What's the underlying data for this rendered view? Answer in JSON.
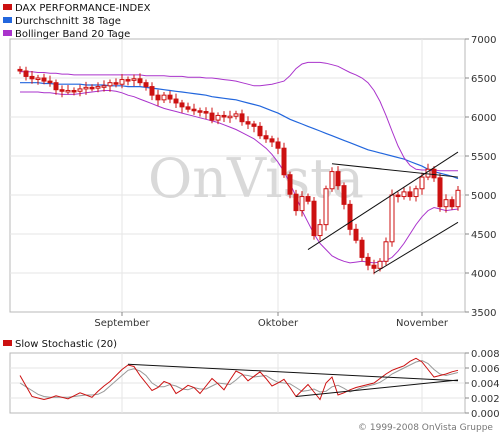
{
  "chart_data": [
    {
      "type": "candlestick",
      "title": "",
      "legend": [
        {
          "name": "DAX PERFORMANCE-INDEX",
          "color": "#cc1111"
        },
        {
          "name": "Durchschnitt 38 Tage",
          "color": "#2266dd"
        },
        {
          "name": "Bollinger Band 20 Tage",
          "color": "#aa33cc"
        }
      ],
      "legend_position": "top-left",
      "x_tick_labels": [
        "September",
        "Oktober",
        "November"
      ],
      "x_ticks_index": [
        17,
        43,
        67
      ],
      "y_tick_labels": [
        "7000",
        "6500",
        "6000",
        "5500",
        "5000",
        "4500",
        "4000",
        "3500"
      ],
      "ylim": [
        3500,
        7000
      ],
      "grid": true,
      "watermark": "OnVista",
      "series": [
        {
          "name": "DAX PERFORMANCE-INDEX",
          "color": "#cc1111",
          "close": [
            6590,
            6520,
            6490,
            6500,
            6460,
            6440,
            6350,
            6330,
            6340,
            6330,
            6360,
            6380,
            6370,
            6390,
            6400,
            6440,
            6420,
            6480,
            6470,
            6490,
            6440,
            6390,
            6280,
            6220,
            6280,
            6230,
            6180,
            6130,
            6100,
            6080,
            6070,
            6050,
            5960,
            6020,
            6000,
            6010,
            6040,
            5940,
            5910,
            5880,
            5760,
            5720,
            5680,
            5600,
            5260,
            5010,
            4800,
            4980,
            4920,
            4480,
            4620,
            5080,
            5300,
            5120,
            4880,
            4560,
            4420,
            4200,
            4100,
            4060,
            4150,
            4400,
            5000,
            4980,
            5040,
            4980,
            5080,
            5230,
            5330,
            5220,
            4850,
            4940,
            4850,
            5060
          ]
        },
        {
          "name": "Durchschnitt 38 Tage",
          "color": "#2266dd",
          "values": [
            6440,
            6440,
            6440,
            6440,
            6430,
            6430,
            6420,
            6420,
            6420,
            6420,
            6420,
            6410,
            6410,
            6410,
            6410,
            6400,
            6400,
            6400,
            6390,
            6390,
            6390,
            6380,
            6370,
            6360,
            6350,
            6340,
            6330,
            6320,
            6310,
            6300,
            6290,
            6280,
            6260,
            6250,
            6240,
            6230,
            6220,
            6200,
            6180,
            6160,
            6140,
            6110,
            6080,
            6050,
            6010,
            5970,
            5940,
            5910,
            5880,
            5850,
            5820,
            5790,
            5760,
            5730,
            5700,
            5670,
            5640,
            5610,
            5580,
            5560,
            5540,
            5520,
            5500,
            5480,
            5460,
            5430,
            5400,
            5370,
            5330,
            5300,
            5280,
            5260,
            5240,
            5210
          ]
        },
        {
          "name": "Bollinger Band 20 Tage (oben)",
          "color": "#aa33cc",
          "values": [
            6580,
            6580,
            6580,
            6570,
            6570,
            6560,
            6560,
            6550,
            6550,
            6540,
            6540,
            6540,
            6540,
            6540,
            6540,
            6540,
            6540,
            6540,
            6540,
            6540,
            6540,
            6530,
            6530,
            6530,
            6530,
            6520,
            6520,
            6520,
            6510,
            6510,
            6510,
            6500,
            6500,
            6490,
            6480,
            6470,
            6460,
            6440,
            6420,
            6400,
            6400,
            6410,
            6420,
            6440,
            6460,
            6530,
            6620,
            6680,
            6700,
            6700,
            6700,
            6690,
            6670,
            6650,
            6610,
            6570,
            6540,
            6500,
            6440,
            6340,
            6200,
            6020,
            5820,
            5630,
            5480,
            5380,
            5330,
            5320,
            5320,
            5320,
            5310,
            5310,
            5310,
            5310
          ]
        },
        {
          "name": "Bollinger Band 20 Tage (unten)",
          "color": "#aa33cc",
          "values": [
            6320,
            6320,
            6320,
            6320,
            6310,
            6310,
            6300,
            6290,
            6290,
            6290,
            6300,
            6310,
            6320,
            6330,
            6340,
            6340,
            6330,
            6310,
            6280,
            6260,
            6230,
            6200,
            6170,
            6140,
            6110,
            6090,
            6070,
            6050,
            6030,
            6010,
            5990,
            5970,
            5950,
            5930,
            5900,
            5870,
            5840,
            5800,
            5760,
            5720,
            5660,
            5600,
            5520,
            5420,
            5300,
            5150,
            4980,
            4800,
            4650,
            4500,
            4380,
            4300,
            4220,
            4180,
            4150,
            4130,
            4140,
            4150,
            4140,
            4130,
            4140,
            4160,
            4200,
            4280,
            4380,
            4500,
            4620,
            4720,
            4800,
            4840,
            4820,
            4800,
            4810,
            4820
          ]
        }
      ],
      "annotations": [
        {
          "type": "trendline",
          "from": {
            "index": 52,
            "value": 5400
          },
          "to": {
            "index": 73,
            "value": 5230
          }
        },
        {
          "type": "trendline",
          "from": {
            "index": 48,
            "value": 4300
          },
          "to": {
            "index": 73,
            "value": 5550
          }
        },
        {
          "type": "trendline",
          "from": {
            "index": 59,
            "value": 4000
          },
          "to": {
            "index": 73,
            "value": 4650
          }
        }
      ]
    },
    {
      "type": "line",
      "title": "",
      "legend": [
        {
          "name": "Slow Stochastic (20)",
          "color": "#cc1111"
        }
      ],
      "y_tick_labels": [
        "0.008",
        "0.006",
        "0.004",
        "0.002",
        "0.000"
      ],
      "ylim": [
        0,
        0.008
      ],
      "grid": true,
      "series": [
        {
          "name": "Slow Stochastic (20)",
          "color": "#cc1111",
          "values": [
            0.005,
            0.0036,
            0.0022,
            0.002,
            0.0018,
            0.002,
            0.0023,
            0.0021,
            0.0019,
            0.0023,
            0.0027,
            0.0024,
            0.0021,
            0.0029,
            0.0036,
            0.0042,
            0.005,
            0.0058,
            0.0064,
            0.0062,
            0.005,
            0.004,
            0.003,
            0.0034,
            0.0042,
            0.0039,
            0.0026,
            0.0031,
            0.0037,
            0.0034,
            0.0026,
            0.0036,
            0.0046,
            0.0039,
            0.0031,
            0.0044,
            0.0056,
            0.0052,
            0.0043,
            0.0049,
            0.0055,
            0.0046,
            0.0036,
            0.004,
            0.0045,
            0.0034,
            0.0022,
            0.003,
            0.0038,
            0.0028,
            0.0018,
            0.004,
            0.0048,
            0.0024,
            0.0027,
            0.0031,
            0.0034,
            0.0036,
            0.0038,
            0.004,
            0.0046,
            0.0052,
            0.0057,
            0.006,
            0.0063,
            0.0069,
            0.0073,
            0.0068,
            0.0058,
            0.0048,
            0.005,
            0.0052,
            0.0055,
            0.0057
          ]
        },
        {
          "name": "Slow Stochastic (20) signal",
          "color": "#999999",
          "values": [
            0.004,
            0.0035,
            0.003,
            0.0025,
            0.0022,
            0.0021,
            0.0021,
            0.0021,
            0.0021,
            0.0022,
            0.0023,
            0.0024,
            0.0024,
            0.0025,
            0.0029,
            0.0036,
            0.0043,
            0.005,
            0.0057,
            0.0059,
            0.0056,
            0.005,
            0.004,
            0.0035,
            0.0035,
            0.0038,
            0.0036,
            0.0032,
            0.0031,
            0.0034,
            0.0032,
            0.0032,
            0.0036,
            0.004,
            0.0039,
            0.0038,
            0.0044,
            0.0051,
            0.005,
            0.0048,
            0.0049,
            0.005,
            0.0045,
            0.0041,
            0.004,
            0.0039,
            0.0034,
            0.0029,
            0.003,
            0.0032,
            0.0028,
            0.0029,
            0.0035,
            0.0037,
            0.0033,
            0.0028,
            0.0031,
            0.0034,
            0.0036,
            0.0038,
            0.0041,
            0.0046,
            0.0052,
            0.0056,
            0.006,
            0.0064,
            0.0068,
            0.007,
            0.0066,
            0.0058,
            0.0052,
            0.005,
            0.0052,
            0.0054
          ]
        }
      ],
      "annotations": [
        {
          "type": "trendline",
          "from": {
            "index": 18,
            "value": 0.0065
          },
          "to": {
            "index": 73,
            "value": 0.0043
          }
        },
        {
          "type": "trendline",
          "from": {
            "index": 46,
            "value": 0.0022
          },
          "to": {
            "index": 73,
            "value": 0.0044
          }
        }
      ]
    }
  ],
  "copyright": "© 1999-2008 OnVista Gruppe"
}
